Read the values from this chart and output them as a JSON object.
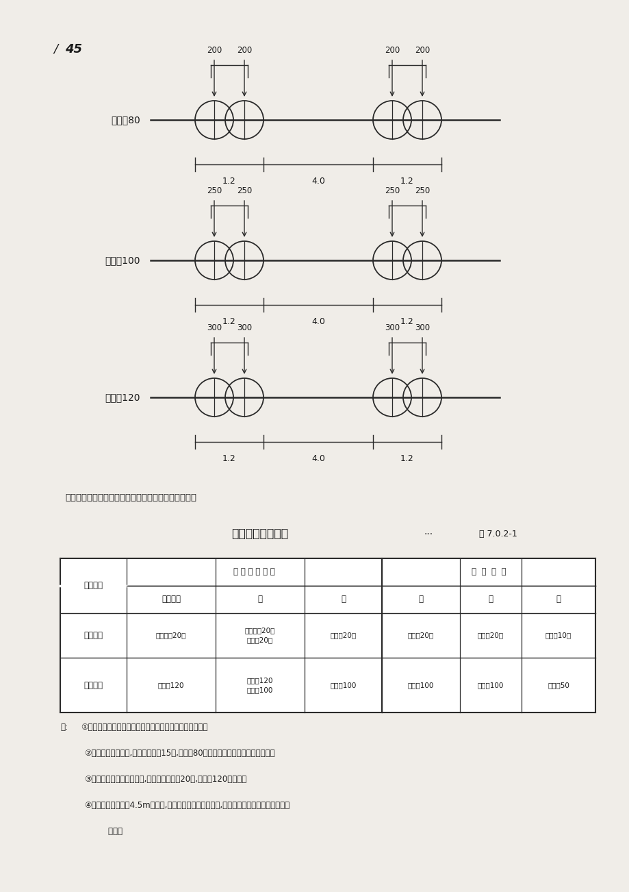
{
  "page_number": "45",
  "diagrams": [
    {
      "label": "挂车－80",
      "wheel_loads": [
        "200",
        "200",
        "200",
        "200"
      ],
      "dim1": "1.2",
      "dim2": "4.0",
      "dim3": "1.2"
    },
    {
      "label": "挂车－100",
      "wheel_loads": [
        "250",
        "250",
        "250",
        "250"
      ],
      "dim1": "1.2",
      "dim2": "4.0",
      "dim3": "1.2"
    },
    {
      "label": "挂车－120",
      "wheel_loads": [
        "300",
        "300",
        "300",
        "300"
      ],
      "dim1": "1.2",
      "dim2": "4.0",
      "dim3": "1.2"
    }
  ],
  "intro_text": "汽车荷载与挂车荷载一般配套出现，下图是配套关系。",
  "table_title": "各级公路车辆荷载",
  "table_ref": "表 7.0.2-1",
  "col0_header": "公路等级",
  "col_group1_header": "汽车专用公路",
  "col_group2_header": "一 般 公 路",
  "sub_headers": [
    "高速公路",
    "一",
    "二",
    "二",
    "三",
    "四"
  ],
  "row1_label": "计算荷载",
  "row1_data": [
    "汽车－货20级",
    "汽车－货20级\n汽车－20级",
    "汽车－20级",
    "汽车－20级",
    "汽车－20级",
    "汽车－10级"
  ],
  "row2_label": "验算荷载",
  "row2_data": [
    "挂车－120",
    "挂车－120\n挂车－100",
    "挂车－100",
    "挂车－100",
    "挂车－100",
    "履带－50"
  ],
  "note_prefix": "注:",
  "notes": [
    "①一条路线上的桥涡，一般应采用同一计荷载和验算荷载。",
    "②当改建三级公路时,对达到汽车－15级,挂车－80荷载标准的原有桥梁可适当利用。",
    "③有集装笱运输的一级公路,应采用汽车－货20级,挂车－120的荷载。",
    "④桥面行车道宽度为4.5m的桥梁,其平板挂车不作具体规定,设计时可按实际情况自行确定。",
    "    确定。"
  ],
  "background_color": "#f0ede8",
  "line_color": "#2a2a2a",
  "text_color": "#1a1a1a"
}
